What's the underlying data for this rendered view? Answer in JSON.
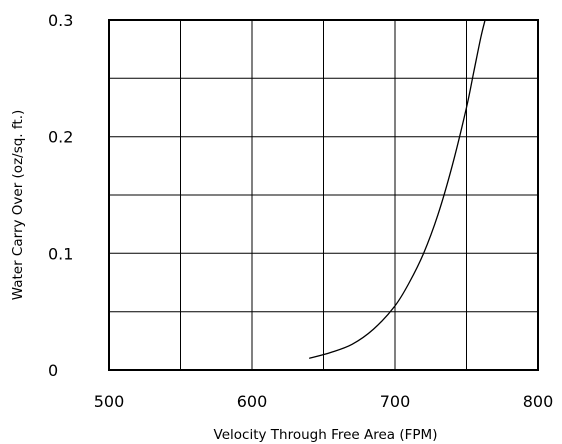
{
  "chart_data": {
    "type": "line",
    "title": "",
    "xlabel": "Velocity Through Free Area (FPM)",
    "ylabel": "Water Carry Over (oz/sq. ft.)",
    "xlim": [
      500,
      800
    ],
    "ylim": [
      0,
      0.3
    ],
    "x_ticks": [
      500,
      600,
      700,
      800
    ],
    "x_tick_labels": [
      "500",
      "600",
      "700",
      "800"
    ],
    "y_ticks": [
      0,
      0.1,
      0.2,
      0.3
    ],
    "y_tick_labels": [
      "0",
      "0.1",
      "0.2",
      "0.3"
    ],
    "x_grid_step": 50,
    "y_grid_step": 0.05,
    "grid": true,
    "legend": "none",
    "series": [
      {
        "x": [
          640,
          655,
          670,
          685,
          700,
          710,
          720,
          730,
          740,
          750,
          755,
          760,
          763
        ],
        "y": [
          0.01,
          0.015,
          0.022,
          0.035,
          0.055,
          0.075,
          0.1,
          0.133,
          0.175,
          0.225,
          0.255,
          0.285,
          0.3
        ]
      }
    ]
  }
}
